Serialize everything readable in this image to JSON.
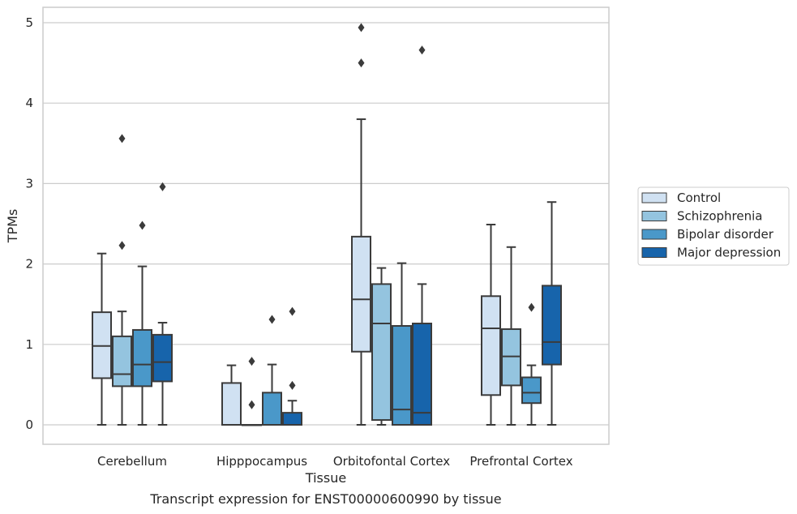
{
  "chart_data": {
    "type": "box",
    "caption": "Transcript expression for ENST00000600990 by tissue",
    "xlabel": "Tissue",
    "ylabel": "TPMs",
    "ylim": [
      -0.24,
      5.2
    ],
    "yticks": [
      0,
      1,
      2,
      3,
      4,
      5
    ],
    "grid": "horizontal",
    "legend_placement": "right",
    "categories": [
      "Cerebellum",
      "Hipppocampus",
      "Orbitofontal Cortex",
      "Prefrontal Cortex"
    ],
    "series": [
      {
        "name": "Control",
        "color": "#d0e1f2",
        "boxes": [
          {
            "whislo": 0,
            "q1": 0.58,
            "med": 0.98,
            "q3": 1.4,
            "whishi": 2.13,
            "fliers": []
          },
          {
            "whislo": 0,
            "q1": 0,
            "med": 0,
            "q3": 0.52,
            "whishi": 0.74,
            "fliers": []
          },
          {
            "whislo": 0,
            "q1": 0.91,
            "med": 1.56,
            "q3": 2.34,
            "whishi": 3.8,
            "fliers": [
              4.5,
              4.94
            ]
          },
          {
            "whislo": 0,
            "q1": 0.37,
            "med": 1.2,
            "q3": 1.6,
            "whishi": 2.49,
            "fliers": []
          }
        ]
      },
      {
        "name": "Schizophrenia",
        "color": "#94c4df",
        "boxes": [
          {
            "whislo": 0,
            "q1": 0.48,
            "med": 0.63,
            "q3": 1.1,
            "whishi": 1.41,
            "fliers": [
              2.23,
              3.56
            ]
          },
          {
            "whislo": 0,
            "q1": 0,
            "med": 0,
            "q3": 0,
            "whishi": 0,
            "fliers": [
              0.25,
              0.79
            ]
          },
          {
            "whislo": 0,
            "q1": 0.06,
            "med": 1.26,
            "q3": 1.75,
            "whishi": 1.95,
            "fliers": []
          },
          {
            "whislo": 0,
            "q1": 0.49,
            "med": 0.85,
            "q3": 1.19,
            "whishi": 2.21,
            "fliers": []
          }
        ]
      },
      {
        "name": "Bipolar disorder",
        "color": "#4a98c9",
        "boxes": [
          {
            "whislo": 0,
            "q1": 0.48,
            "med": 0.75,
            "q3": 1.18,
            "whishi": 1.97,
            "fliers": [
              2.48
            ]
          },
          {
            "whislo": 0,
            "q1": 0,
            "med": 0,
            "q3": 0.4,
            "whishi": 0.75,
            "fliers": [
              1.31
            ]
          },
          {
            "whislo": 0,
            "q1": 0,
            "med": 0.19,
            "q3": 1.23,
            "whishi": 2.01,
            "fliers": []
          },
          {
            "whislo": 0,
            "q1": 0.27,
            "med": 0.4,
            "q3": 0.59,
            "whishi": 0.74,
            "fliers": [
              1.46
            ]
          }
        ]
      },
      {
        "name": "Major depression",
        "color": "#1764ab",
        "boxes": [
          {
            "whislo": 0,
            "q1": 0.54,
            "med": 0.78,
            "q3": 1.12,
            "whishi": 1.27,
            "fliers": [
              2.96
            ]
          },
          {
            "whislo": 0,
            "q1": 0,
            "med": 0,
            "q3": 0.15,
            "whishi": 0.3,
            "fliers": [
              0.49,
              1.41
            ]
          },
          {
            "whislo": 0,
            "q1": 0,
            "med": 0.15,
            "q3": 1.26,
            "whishi": 1.75,
            "fliers": [
              4.66
            ]
          },
          {
            "whislo": 0,
            "q1": 0.75,
            "med": 1.03,
            "q3": 1.73,
            "whishi": 2.77,
            "fliers": []
          }
        ]
      }
    ]
  }
}
